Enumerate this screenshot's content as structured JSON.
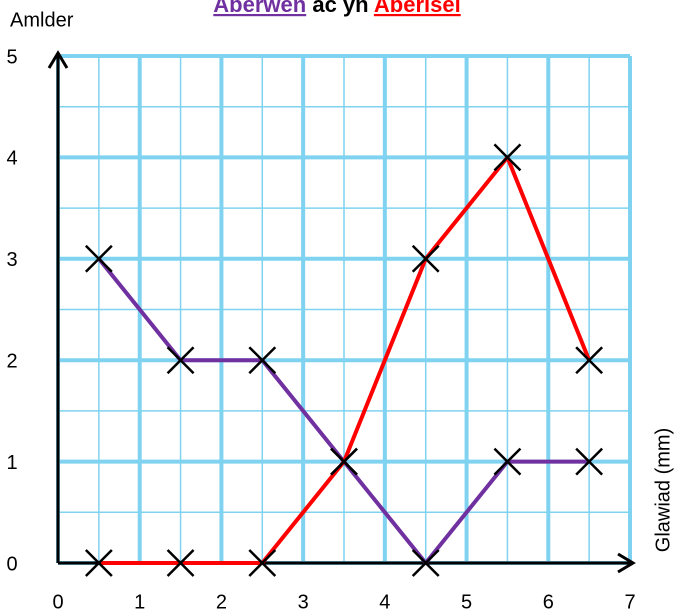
{
  "chart_data": {
    "type": "line",
    "title_joiner": "ac yn",
    "x_label": "Glawiad (mm)",
    "y_label": "Amlder",
    "x": [
      0.5,
      1.5,
      2.5,
      3.5,
      4.5,
      5.5,
      6.5
    ],
    "series": [
      {
        "name": "Aberwen",
        "color": "#7030a0",
        "values": [
          3,
          2,
          2,
          1,
          0,
          1,
          1
        ]
      },
      {
        "name": "Aberisel",
        "color": "#ff0000",
        "values": [
          0,
          0,
          0,
          1,
          3,
          4,
          2
        ]
      }
    ],
    "xlim": [
      0,
      7
    ],
    "xticks": [
      0,
      1,
      2,
      3,
      4,
      5,
      6,
      7
    ],
    "ylim": [
      0,
      5
    ],
    "yticks": [
      0,
      1,
      2,
      3,
      4,
      5
    ],
    "grid": true,
    "grid_color": "#7fd3f0",
    "marker": "x"
  }
}
